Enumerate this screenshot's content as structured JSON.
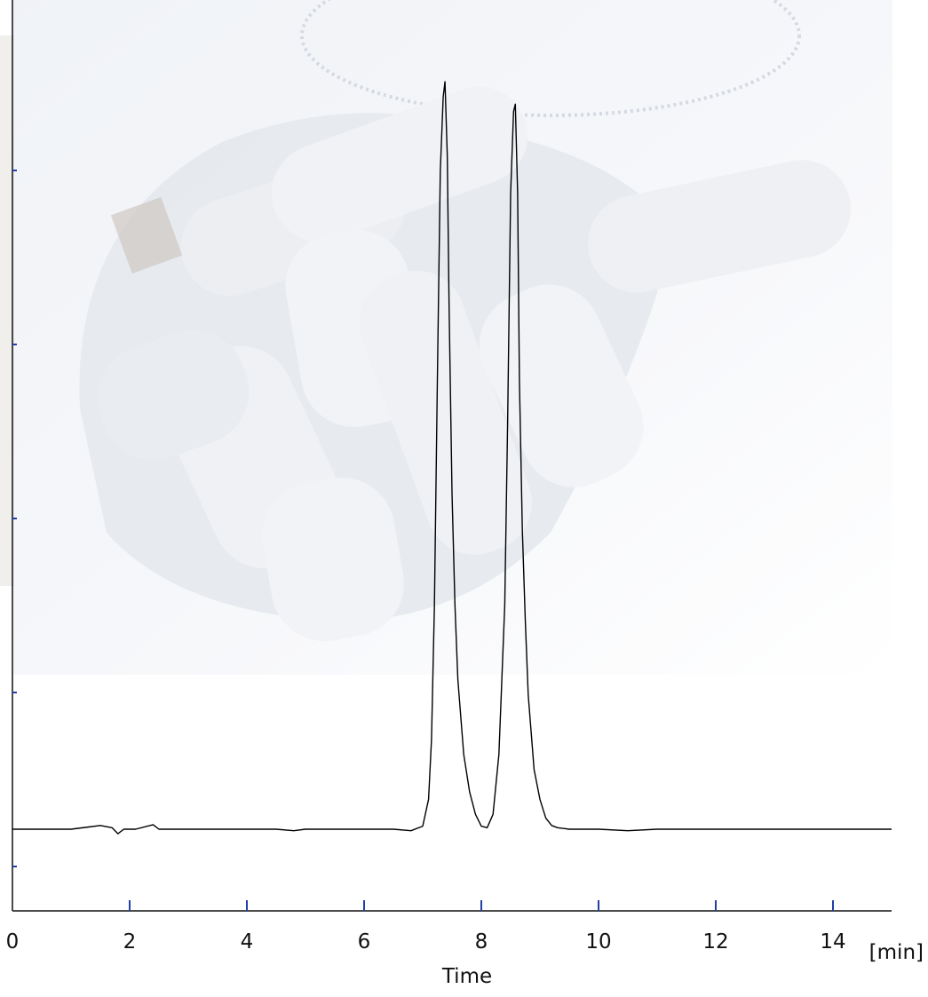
{
  "chart_data": {
    "type": "line",
    "title": "",
    "xlabel": "Time",
    "x_unit": "[min]",
    "ylabel": "",
    "xlim": [
      0,
      15
    ],
    "ylim": [
      -0.12,
      1.0
    ],
    "x_ticks": [
      0,
      2,
      4,
      6,
      8,
      10,
      12,
      14
    ],
    "y_tick_count": 5,
    "grid": false,
    "legend": "none",
    "line_color": "#000000",
    "axis_tick_color": "#1f3fa8",
    "series": [
      {
        "x": [
          0.0,
          1.0,
          1.3,
          1.5,
          1.7,
          1.8,
          1.9,
          2.1,
          2.4,
          2.5,
          3.0,
          4.5,
          4.8,
          5.0,
          5.5,
          6.5,
          6.8,
          7.0,
          7.1,
          7.15,
          7.2,
          7.25,
          7.3,
          7.35,
          7.38,
          7.42,
          7.45,
          7.5,
          7.55,
          7.6,
          7.7,
          7.8,
          7.9,
          8.0,
          8.1,
          8.2,
          8.3,
          8.4,
          8.45,
          8.5,
          8.55,
          8.58,
          8.62,
          8.65,
          8.7,
          8.75,
          8.8,
          8.9,
          9.0,
          9.1,
          9.2,
          9.3,
          9.5,
          10.0,
          10.5,
          11.0,
          11.5,
          12.0,
          13.0,
          14.0,
          15.0
        ],
        "y": [
          0.0,
          0.0,
          0.003,
          0.005,
          0.002,
          -0.006,
          0.0,
          0.0,
          0.006,
          0.0,
          0.0,
          0.0,
          -0.002,
          0.0,
          0.0,
          0.0,
          -0.002,
          0.004,
          0.04,
          0.12,
          0.3,
          0.6,
          0.88,
          0.98,
          1.0,
          0.9,
          0.7,
          0.45,
          0.3,
          0.2,
          0.1,
          0.05,
          0.02,
          0.004,
          0.002,
          0.02,
          0.1,
          0.3,
          0.55,
          0.85,
          0.96,
          0.97,
          0.85,
          0.6,
          0.4,
          0.28,
          0.18,
          0.08,
          0.04,
          0.015,
          0.005,
          0.002,
          0.0,
          0.0,
          -0.002,
          0.0,
          0.0,
          0.0,
          0.0,
          0.0,
          0.0
        ]
      }
    ]
  }
}
